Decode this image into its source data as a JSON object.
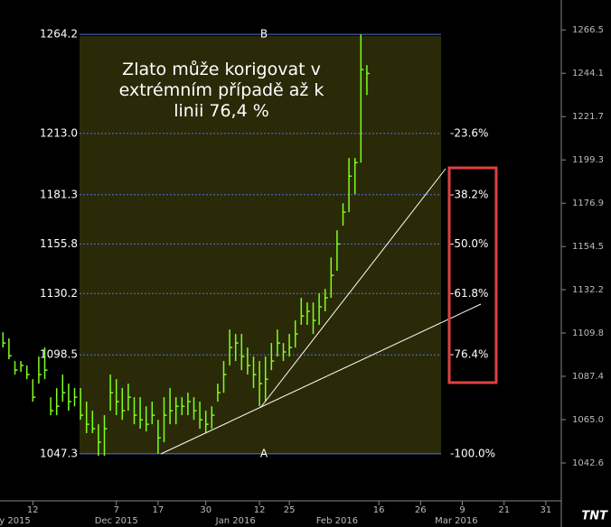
{
  "chart_data": {
    "type": "hlc",
    "annotation": [
      "Zlato může korigovat v",
      "extrémním případě až k",
      "linii 76,4 %"
    ],
    "color": "#7fff1e",
    "ylim": [
      1023,
      1282
    ],
    "yticks": [
      1266.5,
      1244.1,
      1221.7,
      1199.3,
      1176.9,
      1154.5,
      1132.2,
      1109.8,
      1087.4,
      {
        "value": 1065,
        "label": "1065.0"
      },
      1042.6
    ],
    "fib_levels": [
      1264.2,
      {
        "value": 1213,
        "label": "1213.0"
      },
      1181.3,
      1155.8,
      1130.2,
      1098.5,
      1047.3
    ],
    "fib_percents": [
      null,
      "-23.6%",
      "-38.2%",
      "-50.0%",
      "-61.8%",
      "-76.4%",
      "-100.0%"
    ],
    "fib_top_label": "B",
    "fib_bottom_label": "A",
    "fib_color": "#5a70d8",
    "categories": [
      null,
      null,
      null,
      null,
      null,
      "12",
      null,
      null,
      null,
      null,
      null,
      null,
      null,
      null,
      null,
      null,
      null,
      null,
      null,
      "7",
      null,
      null,
      null,
      null,
      null,
      null,
      "17",
      null,
      null,
      null,
      null,
      null,
      null,
      null,
      "30",
      null,
      null,
      null,
      null,
      null,
      null,
      null,
      null,
      "12",
      null,
      null,
      null,
      null,
      "25",
      null,
      null,
      null,
      null,
      null,
      null,
      null,
      null,
      null,
      null,
      null,
      null,
      null,
      null,
      "16",
      null,
      null,
      null,
      null,
      null,
      null,
      "26",
      null,
      null,
      null,
      null,
      null,
      null,
      "9",
      null,
      null,
      null,
      null,
      null,
      null,
      "21",
      null,
      null,
      null,
      null,
      null,
      null,
      "31",
      null,
      null
    ],
    "months": [
      null,
      null,
      "y 2015",
      null,
      null,
      null,
      null,
      null,
      null,
      null,
      null,
      null,
      null,
      null,
      null,
      null,
      null,
      null,
      null,
      "Dec 2015",
      null,
      null,
      null,
      null,
      null,
      null,
      null,
      null,
      null,
      null,
      null,
      null,
      null,
      null,
      null,
      null,
      null,
      null,
      null,
      "Jan 2016",
      null,
      null,
      null,
      null,
      null,
      null,
      null,
      null,
      null,
      null,
      null,
      null,
      null,
      null,
      null,
      null,
      "Feb 2016",
      null,
      null,
      null,
      null,
      null,
      null,
      null,
      null,
      null,
      null,
      null,
      null,
      null,
      null,
      null,
      null,
      null,
      null,
      null,
      "Mar 2016",
      null,
      null,
      null,
      null,
      null,
      null,
      null,
      null,
      null,
      null,
      null,
      null,
      null,
      null,
      null,
      null,
      null
    ],
    "high": [
      1110.2,
      1107.0,
      1095.3,
      1095.3,
      1093.0,
      1085.9,
      1097.6,
      1102.3,
      1076.6,
      1081.3,
      1088.3,
      1083.6,
      1081.3,
      1081.3,
      1074.3,
      1069.6,
      1062.6,
      1067.3,
      1088.3,
      1085.9,
      1081.3,
      1083.6,
      1076.6,
      1076.6,
      1071.9,
      1074.3,
      1064.9,
      1076.6,
      1081.3,
      1076.6,
      1076.6,
      1078.9,
      1076.6,
      1074.3,
      1069.6,
      1071.9,
      1083.6,
      1095.3,
      1111.6,
      1109.3,
      1109.3,
      1102.3,
      1097.6,
      1095.3,
      1097.6,
      1104.6,
      1111.6,
      1104.6,
      1109.3,
      1116.3,
      1128.0,
      1125.6,
      1125.6,
      1130.3,
      1132.6,
      1148.9,
      1162.9,
      1176.9,
      1200.3,
      1200.3,
      1264.2,
      1248.3,
      null,
      null,
      null,
      null,
      null,
      null,
      null,
      null,
      null,
      null,
      null,
      null,
      null,
      null,
      null,
      null,
      null,
      null,
      null,
      null,
      null,
      null,
      null,
      null,
      null,
      null,
      null,
      null,
      null,
      null,
      null,
      null
    ],
    "low": [
      1102.3,
      1096.2,
      1088.3,
      1089.7,
      1085.9,
      1074.3,
      1083.6,
      1085.9,
      1067.3,
      1067.3,
      1074.3,
      1069.6,
      1071.9,
      1064.9,
      1058.0,
      1058.0,
      1046.3,
      1046.3,
      1069.6,
      1067.3,
      1064.9,
      1069.6,
      1062.6,
      1060.3,
      1058.9,
      1062.6,
      1047.3,
      1053.3,
      1062.6,
      1062.6,
      1067.3,
      1067.3,
      1064.9,
      1060.3,
      1058.0,
      1060.3,
      1074.3,
      1078.9,
      1093.0,
      1095.3,
      1090.6,
      1088.3,
      1081.3,
      1071.9,
      1074.3,
      1090.6,
      1097.6,
      1095.3,
      1097.6,
      1102.3,
      1114.0,
      1114.0,
      1109.3,
      1114.0,
      1121.0,
      1128.0,
      1142.0,
      1165.3,
      1172.3,
      1181.6,
      1197.9,
      1232.9,
      null,
      null,
      null,
      null,
      null,
      null,
      null,
      null,
      null,
      null,
      null,
      null,
      null,
      null,
      null,
      null,
      null,
      null,
      null,
      null,
      null,
      null,
      null,
      null,
      null,
      null,
      null,
      null,
      null,
      null,
      null,
      null
    ],
    "close": [
      1104.6,
      1098.0,
      1090.6,
      1093.0,
      1088.3,
      1076.6,
      1088.3,
      1090.6,
      1069.6,
      1071.9,
      1078.9,
      1074.3,
      1076.6,
      1067.3,
      1062.6,
      1060.3,
      1053.3,
      1060.3,
      1078.9,
      1074.3,
      1069.6,
      1076.6,
      1067.3,
      1064.9,
      1062.6,
      1067.3,
      1055.6,
      1067.3,
      1069.6,
      1071.9,
      1071.9,
      1074.3,
      1069.6,
      1064.9,
      1062.6,
      1067.3,
      1078.9,
      1088.3,
      1102.3,
      1104.6,
      1097.6,
      1093.0,
      1088.3,
      1083.6,
      1085.9,
      1095.3,
      1104.6,
      1100.0,
      1102.3,
      1109.3,
      1118.6,
      1121.0,
      1116.3,
      1123.3,
      1128.0,
      1139.6,
      1155.8,
      1172.3,
      1190.9,
      1197.9,
      1246.0,
      1244.0,
      null,
      null,
      null,
      null,
      null,
      null,
      null,
      null,
      null,
      null,
      null,
      null,
      null,
      null,
      null,
      null,
      null,
      null,
      null,
      null,
      null,
      null,
      null,
      null,
      null,
      null,
      null,
      null,
      null,
      null,
      null,
      null
    ]
  }
}
